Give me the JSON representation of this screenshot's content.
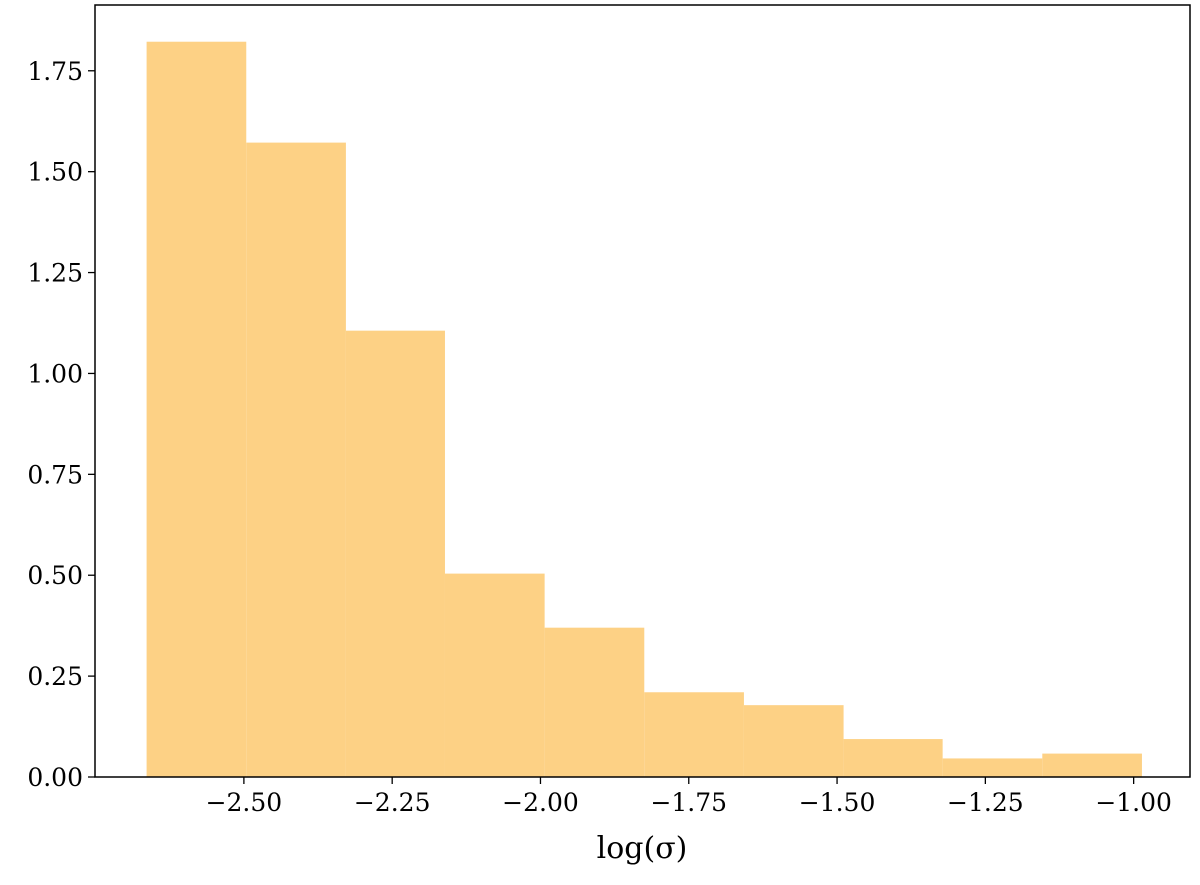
{
  "chart_data": {
    "type": "histogram",
    "x_label": "log(σ)",
    "bins": [
      -2.664,
      -2.496,
      -2.328,
      -2.161,
      -1.993,
      -1.825,
      -1.657,
      -1.489,
      -1.322,
      -1.154,
      -0.986
    ],
    "values": [
      1.822,
      1.572,
      1.106,
      0.504,
      0.37,
      0.21,
      0.178,
      0.094,
      0.046,
      0.058
    ],
    "color": "#fdd185",
    "xlim": [
      -2.751,
      -0.905
    ],
    "ylim": [
      0,
      1.913
    ],
    "xticks": [
      {
        "value": -2.5,
        "label": "−2.50"
      },
      {
        "value": -2.25,
        "label": "−2.25"
      },
      {
        "value": -2.0,
        "label": "−2.00"
      },
      {
        "value": -1.75,
        "label": "−1.75"
      },
      {
        "value": -1.5,
        "label": "−1.50"
      },
      {
        "value": -1.25,
        "label": "−1.25"
      },
      {
        "value": -1.0,
        "label": "−1.00"
      }
    ],
    "yticks": [
      {
        "value": 0,
        "label": "0.00"
      },
      {
        "value": 0.25,
        "label": "0.25"
      },
      {
        "value": 0.5,
        "label": "0.50"
      },
      {
        "value": 0.75,
        "label": "0.75"
      },
      {
        "value": 1.0,
        "label": "1.00"
      },
      {
        "value": 1.25,
        "label": "1.25"
      },
      {
        "value": 1.5,
        "label": "1.50"
      },
      {
        "value": 1.75,
        "label": "1.75"
      }
    ]
  }
}
